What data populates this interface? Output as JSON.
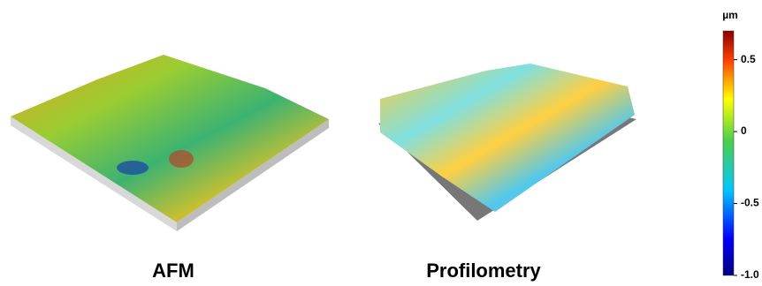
{
  "panels": [
    {
      "label": "AFM"
    },
    {
      "label": "Profilometry"
    }
  ],
  "colorbar": {
    "unit": "µm",
    "lim": [
      -1.0,
      0.7
    ],
    "ticks": [
      0.5,
      0,
      -0.5,
      {
        "value": -1.0,
        "label": "-1.0"
      }
    ]
  }
}
